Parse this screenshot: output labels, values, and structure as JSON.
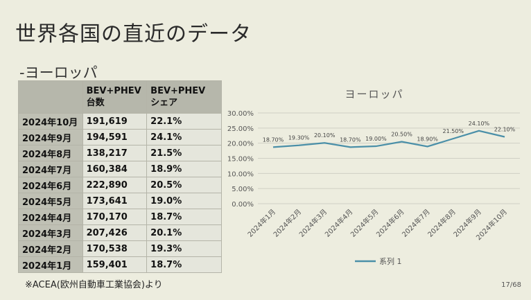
{
  "slide": {
    "title": "世界各国の直近のデータ",
    "subtitle": "-ヨーロッパ",
    "note": "※ACEA(欧州自動車工業協会)より",
    "page": "17/68"
  },
  "table": {
    "headers": [
      "",
      "BEV+PHEV\n台数",
      "BEV+PHEV\nシェア"
    ],
    "rows": [
      [
        "2024年10月",
        "191,619",
        "22.1%"
      ],
      [
        "2024年9月",
        "194,591",
        "24.1%"
      ],
      [
        "2024年8月",
        "138,217",
        "21.5%"
      ],
      [
        "2024年7月",
        "160,384",
        "18.9%"
      ],
      [
        "2024年6月",
        "222,890",
        "20.5%"
      ],
      [
        "2024年5月",
        "173,641",
        "19.0%"
      ],
      [
        "2024年4月",
        "170,170",
        "18.7%"
      ],
      [
        "2024年3月",
        "207,426",
        "20.1%"
      ],
      [
        "2024年2月",
        "170,538",
        "19.3%"
      ],
      [
        "2024年1月",
        "159,401",
        "18.7%"
      ]
    ]
  },
  "chart_data": {
    "type": "line",
    "title": "ヨーロッパ",
    "categories": [
      "2024年1月",
      "2024年2月",
      "2024年3月",
      "2024年4月",
      "2024年5月",
      "2024年6月",
      "2024年7月",
      "2024年8月",
      "2024年9月",
      "2024年10月"
    ],
    "series": [
      {
        "name": "系列 1",
        "values": [
          18.7,
          19.3,
          20.1,
          18.7,
          19.0,
          20.5,
          18.9,
          21.5,
          24.1,
          22.1
        ]
      }
    ],
    "data_labels": [
      "18.70%",
      "19.30%",
      "20.10%",
      "18.70%",
      "19.00%",
      "20.50%",
      "18.90%",
      "21.50%",
      "24.10%",
      "22.10%"
    ],
    "y_ticks": [
      "30.00%",
      "25.00%",
      "20.00%",
      "15.00%",
      "10.00%",
      "5.00%",
      "0.00%"
    ],
    "ylim": [
      0,
      30
    ],
    "grid": true,
    "legend": "bottom",
    "line_color": "#4a8fa8"
  }
}
